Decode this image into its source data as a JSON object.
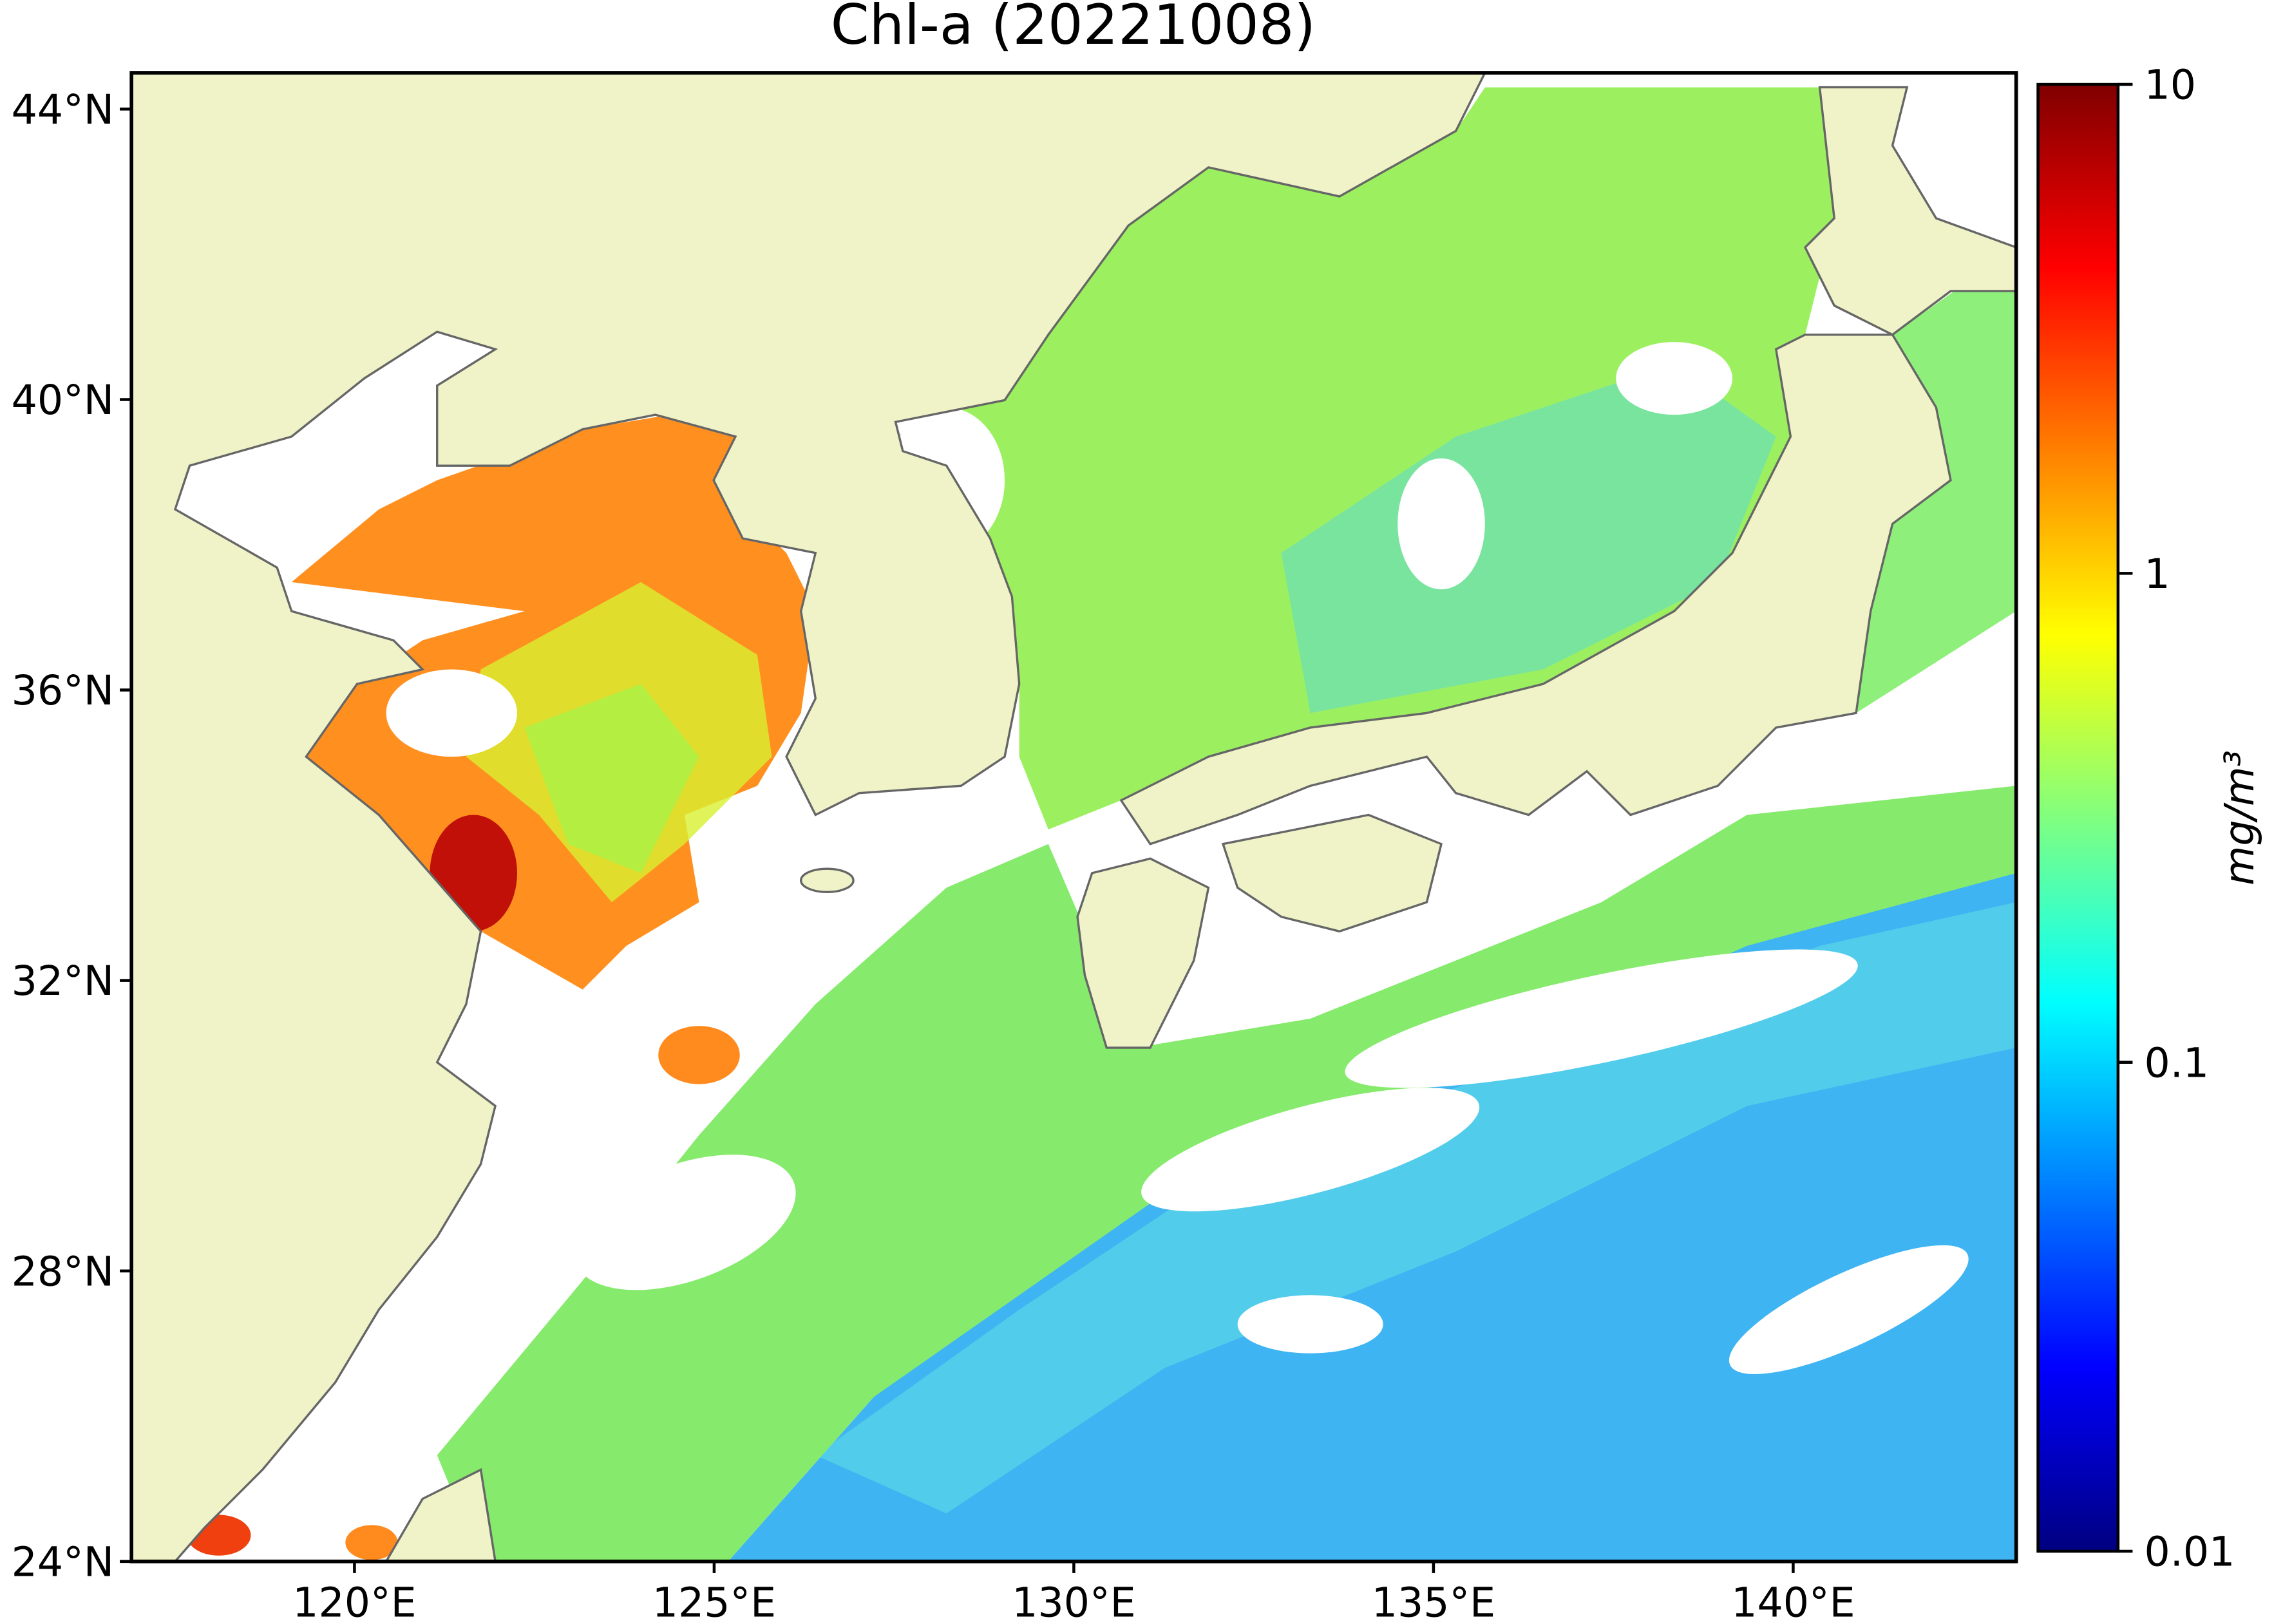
{
  "chart_data": {
    "type": "map",
    "title": "Chl-a (20221008)",
    "lonlim": [
      116.9,
      143.1
    ],
    "latlim": [
      24,
      44.5
    ],
    "xticks": [
      {
        "value": 120,
        "label": "120°E"
      },
      {
        "value": 125,
        "label": "125°E"
      },
      {
        "value": 130,
        "label": "130°E"
      },
      {
        "value": 135,
        "label": "135°E"
      },
      {
        "value": 140,
        "label": "140°E"
      }
    ],
    "yticks": [
      {
        "value": 24,
        "label": "24°N"
      },
      {
        "value": 28,
        "label": "28°N"
      },
      {
        "value": 32,
        "label": "32°N"
      },
      {
        "value": 36,
        "label": "36°N"
      },
      {
        "value": 40,
        "label": "40°N"
      },
      {
        "value": 44,
        "label": "44°N"
      }
    ],
    "colorbar": {
      "label": "mg/m³",
      "colormap": "jet",
      "log": true,
      "clim": [
        0.01,
        10
      ],
      "ticks": [
        0.01,
        0.1,
        1,
        10
      ]
    }
  }
}
